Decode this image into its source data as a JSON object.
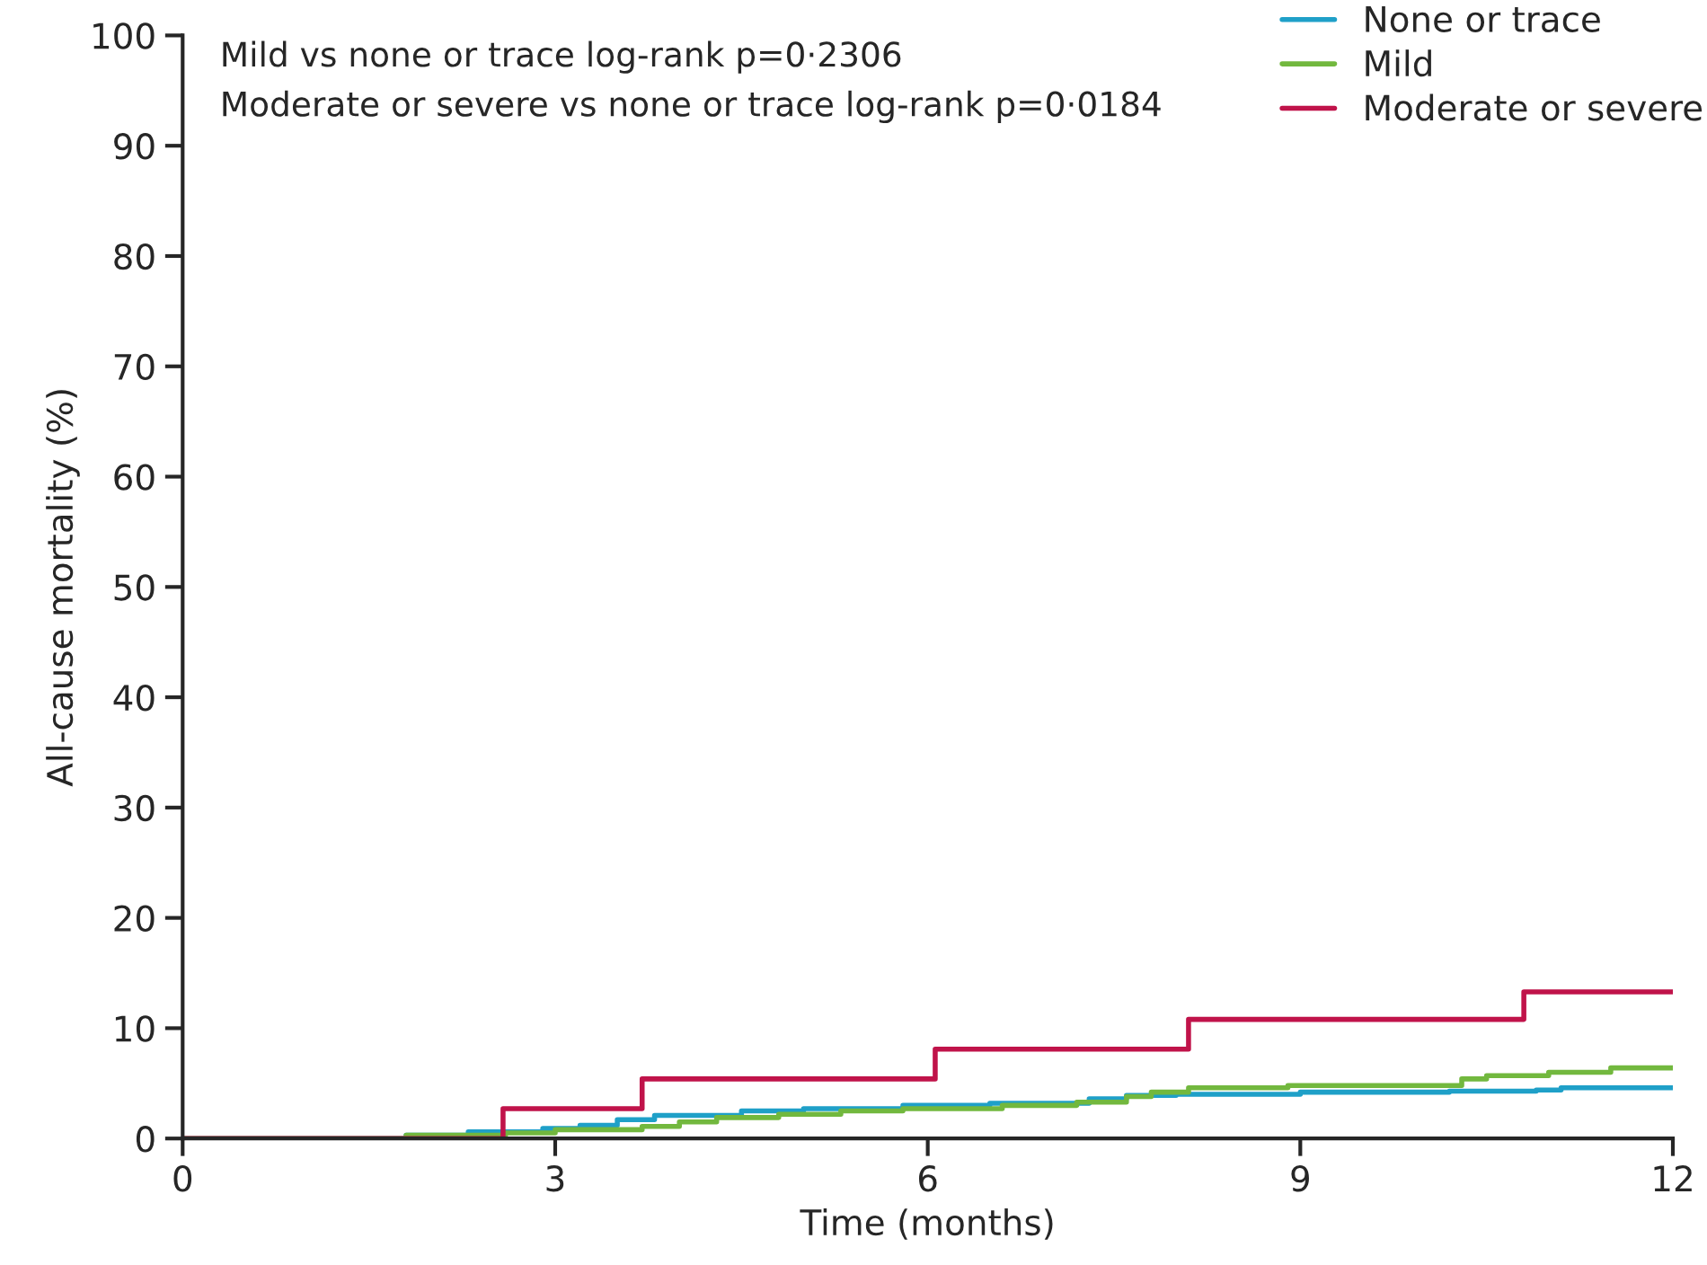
{
  "chart_data": {
    "type": "step",
    "xlabel": "Time (months)",
    "ylabel": "All-cause mortality (%)",
    "xlim": [
      0,
      12
    ],
    "ylim": [
      0,
      100
    ],
    "xticks": [
      0,
      3,
      6,
      9,
      12
    ],
    "yticks": [
      0,
      10,
      20,
      30,
      40,
      50,
      60,
      70,
      80,
      90,
      100
    ],
    "grid": false,
    "legend": "top right",
    "annotations": [
      "Mild vs none or trace log-rank p=0·2306",
      "Moderate or severe vs none or trace log-rank p=0·0184"
    ],
    "series": [
      {
        "name": "None or trace",
        "color": "#1fa0c8",
        "x": [
          0,
          1.8,
          2.3,
          2.9,
          3.2,
          3.5,
          3.8,
          4.5,
          5.0,
          5.8,
          6.5,
          7.3,
          7.6,
          8.0,
          9.0,
          10.2,
          10.9,
          11.1,
          12
        ],
        "values": [
          0,
          0.3,
          0.6,
          0.9,
          1.2,
          1.7,
          2.1,
          2.5,
          2.7,
          3.0,
          3.2,
          3.6,
          3.9,
          4.0,
          4.2,
          4.3,
          4.4,
          4.6,
          4.6
        ]
      },
      {
        "name": "Mild",
        "color": "#72b83e",
        "x": [
          0,
          1.8,
          2.6,
          3.0,
          3.7,
          4.0,
          4.3,
          4.8,
          5.3,
          5.8,
          6.6,
          7.2,
          7.6,
          7.8,
          8.1,
          8.9,
          10.3,
          10.5,
          11.0,
          11.5,
          12
        ],
        "values": [
          0,
          0.3,
          0.5,
          0.8,
          1.1,
          1.5,
          1.9,
          2.2,
          2.5,
          2.7,
          3.0,
          3.3,
          3.8,
          4.2,
          4.6,
          4.8,
          5.4,
          5.7,
          6.0,
          6.4,
          6.4
        ]
      },
      {
        "name": "Moderate or severe",
        "color": "#c0134a",
        "x": [
          0,
          2.58,
          3.7,
          6.06,
          8.1,
          10.8,
          12
        ],
        "values": [
          0,
          2.7,
          5.4,
          8.1,
          10.8,
          13.3,
          13.3
        ]
      }
    ]
  }
}
